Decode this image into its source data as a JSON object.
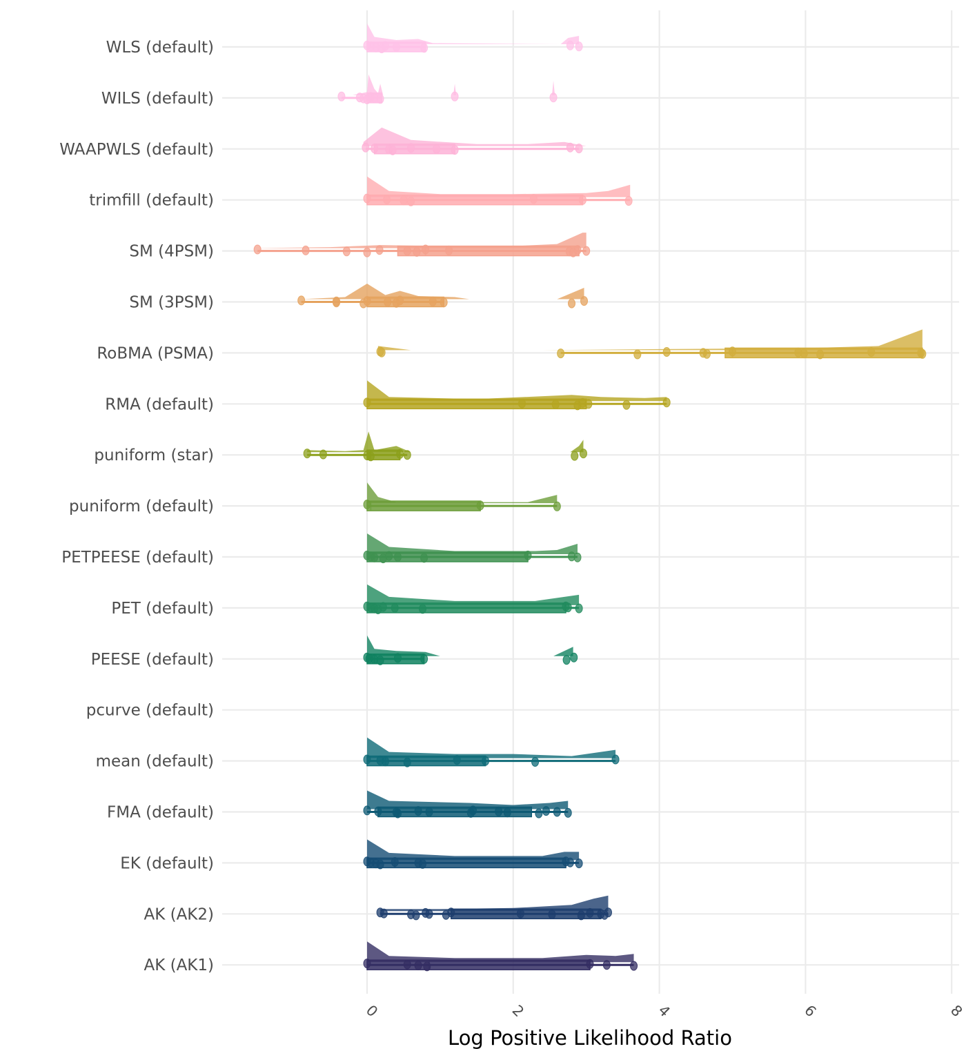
{
  "chart_data": {
    "type": "raincloud",
    "title": "",
    "xlabel": "Log Positive Likelihood Ratio",
    "ylabel": "",
    "xlim": [
      -1.9,
      8.0
    ],
    "xticks": [
      0,
      2,
      4,
      6,
      8
    ],
    "xtick_labels": [
      "0",
      "2",
      "4",
      "6",
      "8"
    ],
    "grid": true,
    "legend": "none",
    "categories": [
      "WLS (default)",
      "WILS (default)",
      "WAAPWLS (default)",
      "trimfill (default)",
      "SM (4PSM)",
      "SM (3PSM)",
      "RoBMA (PSMA)",
      "RMA (default)",
      "puniform (star)",
      "puniform (default)",
      "PETPEESE (default)",
      "PET (default)",
      "PEESE (default)",
      "pcurve (default)",
      "mean (default)",
      "FMA (default)",
      "EK (default)",
      "AK (AK2)",
      "AK (AK1)"
    ],
    "series": [
      {
        "name": "WLS (default)",
        "color": "#FFC2E8",
        "box": [
          0,
          0.15,
          0.8
        ],
        "whisker": [
          0,
          0.8
        ],
        "points": [
          0,
          0.05,
          0.12,
          0.2,
          0.25,
          0.4,
          0.78,
          2.78,
          2.9
        ],
        "density": [
          [
            0,
            1
          ],
          [
            0.1,
            0.35
          ],
          [
            0.4,
            0.2
          ],
          [
            0.7,
            0.25
          ],
          [
            0.9,
            0.05
          ],
          [
            2.65,
            0
          ],
          [
            2.75,
            0.3
          ],
          [
            2.9,
            0.4
          ]
        ]
      },
      {
        "name": "WILS (default)",
        "color": "#FFBDE3",
        "box": [
          0,
          0.05,
          0.2
        ],
        "whisker": [
          -0.35,
          0.2
        ],
        "points": [
          -0.35,
          -0.1,
          -0.05,
          0,
          0.05,
          0.1,
          0.18,
          1.2,
          2.55
        ],
        "density": [
          [
            -0.2,
            0
          ],
          [
            0,
            0.15
          ],
          [
            0.02,
            1
          ],
          [
            0.1,
            0.3
          ],
          [
            0.15,
            0.1
          ],
          [
            0.18,
            0.55
          ],
          [
            0.22,
            0
          ],
          [
            1.18,
            0
          ],
          [
            1.2,
            0.55
          ],
          [
            1.22,
            0
          ],
          [
            2.53,
            0
          ],
          [
            2.55,
            0.7
          ],
          [
            2.57,
            0
          ]
        ]
      },
      {
        "name": "WAAPWLS (default)",
        "color": "#FDB3D7",
        "box": [
          0.1,
          0.3,
          1.2
        ],
        "whisker": [
          -0.02,
          2.9
        ],
        "points": [
          -0.02,
          0.1,
          0.3,
          0.35,
          0.6,
          0.95,
          1.2,
          2.78,
          2.9
        ],
        "density": [
          [
            -0.05,
            0.2
          ],
          [
            0.2,
            0.9
          ],
          [
            0.6,
            0.3
          ],
          [
            1.5,
            0.1
          ],
          [
            2.2,
            0.1
          ],
          [
            2.7,
            0.2
          ],
          [
            3.0,
            0
          ]
        ]
      },
      {
        "name": "trimfill (default)",
        "color": "#FFACB0",
        "box": [
          0,
          0.55,
          2.95
        ],
        "whisker": [
          0,
          3.6
        ],
        "points": [
          0,
          0.27,
          0.5,
          0.6,
          2.28,
          2.95,
          3.58
        ],
        "density": [
          [
            0,
            1
          ],
          [
            0.3,
            0.3
          ],
          [
            1,
            0.15
          ],
          [
            2,
            0.15
          ],
          [
            3,
            0.2
          ],
          [
            3.3,
            0.3
          ],
          [
            3.6,
            0.6
          ]
        ]
      },
      {
        "name": "SM (4PSM)",
        "color": "#F4A18D",
        "box": [
          0.42,
          0.8,
          2.9
        ],
        "whisker": [
          -1.5,
          3.0
        ],
        "points": [
          -1.5,
          -0.84,
          -0.28,
          0,
          0.17,
          0.55,
          0.68,
          0.8,
          1.12,
          2.77,
          2.82,
          2.88,
          3.0
        ],
        "density": [
          [
            -1.55,
            0
          ],
          [
            -0.5,
            0.05
          ],
          [
            0.2,
            0.15
          ],
          [
            1,
            0.1
          ],
          [
            2,
            0.1
          ],
          [
            2.6,
            0.2
          ],
          [
            2.95,
            0.75
          ],
          [
            3.0,
            0.75
          ]
        ]
      },
      {
        "name": "SM (3PSM)",
        "color": "#E5A35F",
        "box": [
          0,
          0.42,
          1.05
        ],
        "whisker": [
          -0.9,
          1.05
        ],
        "points": [
          -0.9,
          -0.42,
          -0.42,
          -0.05,
          0,
          0.28,
          0.4,
          0.45,
          0.9,
          1.05,
          2.8,
          2.97
        ],
        "density": [
          [
            -0.9,
            0
          ],
          [
            -0.3,
            0.1
          ],
          [
            0,
            0.75
          ],
          [
            0.25,
            0.2
          ],
          [
            0.45,
            0.4
          ],
          [
            0.7,
            0.15
          ],
          [
            1.2,
            0.1
          ],
          [
            1.4,
            0
          ],
          [
            2.6,
            0
          ],
          [
            2.97,
            0.55
          ]
        ]
      },
      {
        "name": "RoBMA (PSMA)",
        "color": "#D2AE3E",
        "box": [
          4.9,
          5.0,
          7.6
        ],
        "whisker": [
          2.65,
          7.6
        ],
        "points": [
          0.18,
          0.2,
          2.65,
          3.7,
          4.1,
          4.6,
          4.65,
          5.0,
          5.9,
          5.98,
          6.2,
          6.9,
          7.58,
          7.6
        ],
        "density": [
          [
            0.15,
            0.2
          ],
          [
            0.6,
            0
          ],
          [
            2.4,
            0
          ],
          [
            4,
            0.05
          ],
          [
            6,
            0.1
          ],
          [
            7.0,
            0.2
          ],
          [
            7.6,
            1
          ]
        ]
      },
      {
        "name": "RMA (default)",
        "color": "#B5A521",
        "box": [
          0,
          2.9,
          3.0
        ],
        "whisker": [
          0,
          4.1
        ],
        "points": [
          0,
          2.12,
          2.58,
          2.88,
          2.95,
          3.03,
          3.55,
          4.1
        ],
        "density": [
          [
            0,
            1
          ],
          [
            0.3,
            0.2
          ],
          [
            1.5,
            0.1
          ],
          [
            2.8,
            0.3
          ],
          [
            3.2,
            0.2
          ],
          [
            3.8,
            0.15
          ],
          [
            4.1,
            0.2
          ]
        ]
      },
      {
        "name": "puniform (star)",
        "color": "#8CA01C",
        "box": [
          0,
          0.05,
          0.45
        ],
        "whisker": [
          -0.82,
          0.55
        ],
        "points": [
          -0.82,
          -0.6,
          0,
          0.05,
          0.45,
          0.55,
          2.84,
          2.96
        ],
        "density": [
          [
            -0.82,
            0.1
          ],
          [
            -0.3,
            0.05
          ],
          [
            -0.05,
            0.1
          ],
          [
            0.02,
            1
          ],
          [
            0.1,
            0.1
          ],
          [
            0.4,
            0.3
          ],
          [
            0.6,
            0
          ],
          [
            2.78,
            0
          ],
          [
            2.9,
            0.3
          ],
          [
            2.96,
            0.6
          ]
        ]
      },
      {
        "name": "puniform (default)",
        "color": "#6D9E3A",
        "box": [
          0,
          0.05,
          1.55
        ],
        "whisker": [
          0,
          2.6
        ],
        "points": [
          0,
          1.55,
          2.6
        ],
        "density": [
          [
            0,
            1
          ],
          [
            0.15,
            0.3
          ],
          [
            0.4,
            0.05
          ],
          [
            1.6,
            0.05
          ],
          [
            2.2,
            0.05
          ],
          [
            2.6,
            0.4
          ]
        ]
      },
      {
        "name": "PETPEESE (default)",
        "color": "#3F9150",
        "box": [
          0,
          0.1,
          2.2
        ],
        "whisker": [
          0,
          2.88
        ],
        "points": [
          0,
          0.05,
          0.1,
          0.22,
          0.3,
          0.42,
          0.78,
          2.2,
          2.8,
          2.88
        ],
        "density": [
          [
            0,
            1
          ],
          [
            0.3,
            0.35
          ],
          [
            1.2,
            0.15
          ],
          [
            2.3,
            0.15
          ],
          [
            2.6,
            0.2
          ],
          [
            2.88,
            0.5
          ]
        ]
      },
      {
        "name": "PET (default)",
        "color": "#218B5E",
        "box": [
          0,
          0.1,
          2.72
        ],
        "whisker": [
          0,
          2.9
        ],
        "points": [
          0,
          0.05,
          0.1,
          0.15,
          0.22,
          0.38,
          0.76,
          2.72,
          2.75,
          2.9
        ],
        "density": [
          [
            0,
            1
          ],
          [
            0.3,
            0.4
          ],
          [
            1.2,
            0.2
          ],
          [
            2.3,
            0.2
          ],
          [
            2.7,
            0.4
          ],
          [
            2.9,
            0.5
          ]
        ]
      },
      {
        "name": "PEESE (default)",
        "color": "#108260",
        "box": [
          0,
          0.1,
          0.78
        ],
        "whisker": [
          0,
          0.78
        ],
        "points": [
          0,
          0.03,
          0.1,
          0.18,
          0.42,
          0.78,
          2.73,
          2.83
        ],
        "density": [
          [
            0,
            1
          ],
          [
            0.1,
            0.35
          ],
          [
            0.4,
            0.25
          ],
          [
            0.8,
            0.2
          ],
          [
            1.0,
            0
          ],
          [
            2.55,
            0
          ],
          [
            2.82,
            0.45
          ]
        ]
      },
      {
        "name": "pcurve (default)",
        "color": "#0C7F78",
        "box": null,
        "whisker": null,
        "points": [],
        "density": []
      },
      {
        "name": "mean (default)",
        "color": "#0F6B78",
        "box": [
          0,
          0.25,
          1.62
        ],
        "whisker": [
          0,
          3.4
        ],
        "points": [
          0,
          0.18,
          0.25,
          0.55,
          1.23,
          1.62,
          2.3,
          3.4
        ],
        "density": [
          [
            0,
            1
          ],
          [
            0.3,
            0.3
          ],
          [
            1.2,
            0.2
          ],
          [
            2,
            0.2
          ],
          [
            2.8,
            0.1
          ],
          [
            3.4,
            0.4
          ]
        ]
      },
      {
        "name": "FMA (default)",
        "color": "#0E5A74",
        "box": [
          0.15,
          0.42,
          2.25
        ],
        "whisker": [
          0,
          2.75
        ],
        "points": [
          0,
          0.15,
          0.4,
          0.42,
          0.7,
          0.85,
          1.42,
          1.45,
          1.8,
          1.92,
          2.35,
          2.45,
          2.6,
          2.75
        ],
        "density": [
          [
            0,
            0.9
          ],
          [
            0.3,
            0.4
          ],
          [
            1.4,
            0.3
          ],
          [
            2,
            0.2
          ],
          [
            2.5,
            0.3
          ],
          [
            2.75,
            0.4
          ]
        ]
      },
      {
        "name": "EK (default)",
        "color": "#154C74",
        "box": [
          0,
          0.38,
          2.72
        ],
        "whisker": [
          0,
          2.9
        ],
        "points": [
          0,
          0.05,
          0.12,
          0.18,
          0.38,
          0.7,
          0.76,
          2.72,
          2.78,
          2.9
        ],
        "density": [
          [
            0,
            1
          ],
          [
            0.3,
            0.35
          ],
          [
            1.2,
            0.2
          ],
          [
            2.4,
            0.2
          ],
          [
            2.7,
            0.4
          ],
          [
            2.9,
            0.4
          ]
        ]
      },
      {
        "name": "AK (AK2)",
        "color": "#1E3E6E",
        "box": [
          1.15,
          2.1,
          3.2
        ],
        "whisker": [
          0.18,
          3.3
        ],
        "points": [
          0.18,
          0.23,
          0.6,
          0.67,
          0.8,
          0.85,
          1.08,
          1.15,
          2.1,
          2.53,
          2.93,
          3.05,
          3.2,
          3.25,
          3.3
        ],
        "density": [
          [
            0.18,
            0.1
          ],
          [
            1,
            0.1
          ],
          [
            2,
            0.15
          ],
          [
            2.8,
            0.3
          ],
          [
            3.1,
            0.6
          ],
          [
            3.3,
            0.75
          ]
        ]
      },
      {
        "name": "AK (AK1)",
        "color": "#342E63",
        "box": [
          0,
          0.85,
          3.05
        ],
        "whisker": [
          0,
          3.65
        ],
        "points": [
          0,
          0.55,
          0.7,
          0.82,
          3.05,
          3.28,
          3.65
        ],
        "density": [
          [
            0,
            1
          ],
          [
            0.3,
            0.3
          ],
          [
            1.2,
            0.2
          ],
          [
            2.4,
            0.2
          ],
          [
            3.0,
            0.35
          ],
          [
            3.4,
            0.3
          ],
          [
            3.65,
            0.4
          ]
        ]
      }
    ]
  }
}
